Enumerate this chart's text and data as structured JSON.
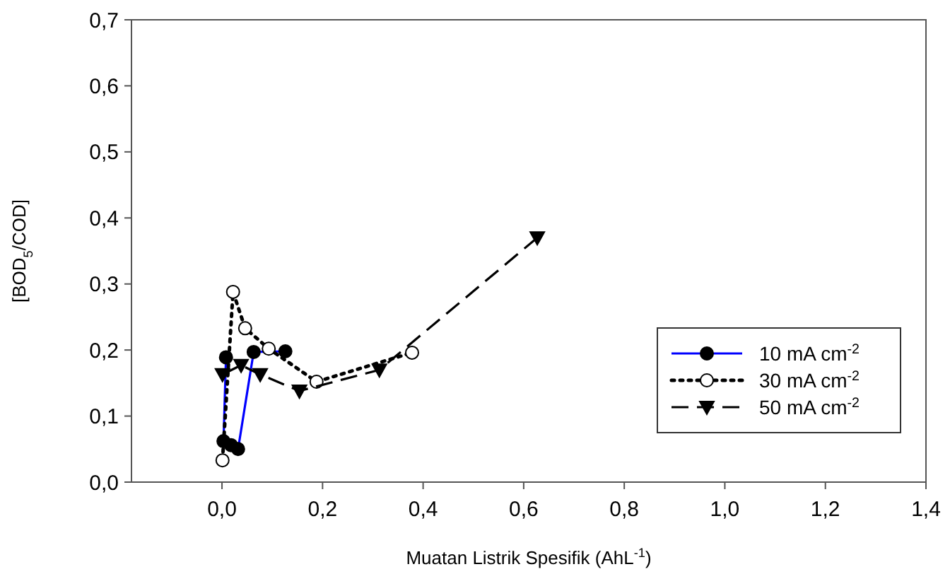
{
  "chart_data": {
    "type": "line",
    "xlabel": "Muatan Listrik Spesifik (AhL$^{-1}$)",
    "ylabel": "[BOD$_{5}$/COD]",
    "xlim": [
      -0.18,
      1.4
    ],
    "xticks": [
      {
        "value": 0,
        "label": "0,0"
      },
      {
        "value": 0.2,
        "label": "0,2"
      },
      {
        "value": 0.4,
        "label": "0,4"
      },
      {
        "value": 0.6,
        "label": "0,6"
      },
      {
        "value": 0.8,
        "label": "0,8"
      },
      {
        "value": 1.0,
        "label": "1,0"
      },
      {
        "value": 1.2,
        "label": "1,2"
      },
      {
        "value": 1.4,
        "label": "1,4"
      }
    ],
    "ylim": [
      0,
      0.7
    ],
    "yticks": [
      {
        "value": 0,
        "label": "0,0"
      },
      {
        "value": 0.1,
        "label": "0,1"
      },
      {
        "value": 0.2,
        "label": "0,2"
      },
      {
        "value": 0.3,
        "label": "0,3"
      },
      {
        "value": 0.4,
        "label": "0,4"
      },
      {
        "value": 0.5,
        "label": "0,5"
      },
      {
        "value": 0.6,
        "label": "0,6"
      },
      {
        "value": 0.7,
        "label": "0,7"
      }
    ],
    "grid": false,
    "legend": "right",
    "series": [
      {
        "name": "10 mA cm$^{-2}$",
        "color": "#0000ff",
        "marker": "circle",
        "line_style": "solid",
        "x": [
          0.008,
          0.003,
          0.018,
          0.032,
          0.063,
          0.126
        ],
        "values": [
          0.189,
          0.062,
          0.056,
          0.05,
          0.197,
          0.198
        ]
      },
      {
        "name": "30 mA cm$^{-2}$",
        "color": "#000000",
        "marker": "circle",
        "line_style": "dotted",
        "x": [
          0.001,
          0.022,
          0.046,
          0.093,
          0.188,
          0.378
        ],
        "values": [
          0.033,
          0.288,
          0.233,
          0.202,
          0.152,
          0.196
        ]
      },
      {
        "name": "50 mA cm$^{-2}$",
        "color": "#000000",
        "marker": "triangle",
        "line_style": "dashed",
        "x": [
          0.001,
          0.038,
          0.076,
          0.154,
          0.313,
          0.627
        ],
        "values": [
          0.163,
          0.177,
          0.163,
          0.138,
          0.17,
          0.37
        ]
      }
    ]
  }
}
